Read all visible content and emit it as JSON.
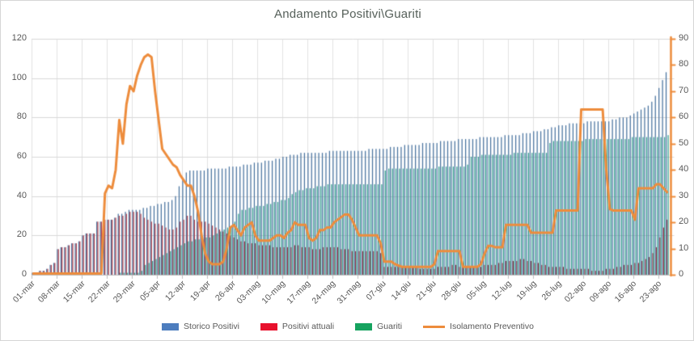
{
  "title": "Andamento Positivi\\Guariti",
  "colors": {
    "storico_bar": "#49739f",
    "attuali_bar": "#a73d4b",
    "guariti_bar": "#2f9b8c",
    "storico_legend": "#4d7dbe",
    "attuali_legend": "#e8112d",
    "guariti_legend": "#16a35f",
    "isolamento_line": "#ed8c3c",
    "gridline": "#d9d9d9",
    "vertical_gridline": "#e2e2e2",
    "axis_line": "#bfbfbf",
    "axis_text": "#595959",
    "title_text": "#56605a"
  },
  "chart_data": {
    "type": "bar",
    "title": "Andamento Positivi\\Guariti",
    "xlabel": "",
    "ylabel": "",
    "grid": true,
    "legend_position": "bottom",
    "n_days": 178,
    "tick_every_days": 7,
    "x_tick_labels": [
      "01-mar",
      "08-mar",
      "15-mar",
      "22-mar",
      "29-mar",
      "05-apr",
      "12-apr",
      "19-apr",
      "26-apr",
      "03-mag",
      "10-mag",
      "17-mag",
      "24-mag",
      "31-mag",
      "07-giu",
      "14-giu",
      "21-giu",
      "28-giu",
      "05-lug",
      "12-lug",
      "19-lug",
      "26-lug",
      "02-ago",
      "09-ago",
      "16-ago",
      "23-ago"
    ],
    "left_axis": {
      "min": 0,
      "max": 120,
      "step": 20,
      "ticks": [
        0,
        20,
        40,
        60,
        80,
        100,
        120
      ]
    },
    "right_axis": {
      "min": 0,
      "max": 90,
      "step": 10,
      "ticks": [
        0,
        10,
        20,
        30,
        40,
        50,
        60,
        70,
        80,
        90
      ]
    },
    "series": [
      {
        "name": "Storico Positivi",
        "type": "bar",
        "axis": "left",
        "values": [
          1,
          1,
          2,
          2,
          3,
          5,
          6,
          13,
          14,
          14,
          15,
          16,
          16,
          17,
          20,
          21,
          21,
          21,
          27,
          27,
          28,
          28,
          28,
          29,
          31,
          31,
          32,
          33,
          33,
          33,
          33,
          34,
          34,
          35,
          35,
          36,
          36,
          37,
          37,
          38,
          40,
          45,
          48,
          52,
          53,
          53,
          53,
          53,
          53,
          54,
          54,
          54,
          54,
          54,
          54,
          55,
          55,
          55,
          55,
          56,
          56,
          56,
          57,
          57,
          57,
          58,
          58,
          58,
          59,
          59,
          60,
          60,
          61,
          61,
          61,
          62,
          62,
          62,
          62,
          62,
          62,
          62,
          62,
          63,
          63,
          63,
          63,
          63,
          63,
          63,
          63,
          63,
          63,
          63,
          64,
          64,
          64,
          64,
          64,
          64,
          65,
          65,
          65,
          65,
          66,
          66,
          66,
          66,
          66,
          67,
          67,
          67,
          67,
          67,
          68,
          68,
          68,
          68,
          68,
          69,
          69,
          69,
          69,
          69,
          69,
          70,
          70,
          70,
          70,
          70,
          70,
          70,
          71,
          71,
          71,
          71,
          71,
          72,
          72,
          72,
          73,
          73,
          73,
          74,
          74,
          75,
          75,
          76,
          76,
          76,
          77,
          77,
          77,
          77,
          77,
          78,
          78,
          78,
          78,
          78,
          78,
          78,
          79,
          79,
          80,
          80,
          80,
          81,
          82,
          83,
          84,
          85,
          86,
          88,
          91,
          95,
          99,
          103
        ]
      },
      {
        "name": "Positivi attuali",
        "type": "bar",
        "axis": "left",
        "values": [
          1,
          1,
          2,
          2,
          3,
          5,
          6,
          13,
          14,
          14,
          15,
          16,
          16,
          17,
          20,
          21,
          21,
          21,
          27,
          27,
          28,
          28,
          28,
          29,
          30,
          30,
          31,
          32,
          32,
          32,
          31,
          29,
          28,
          27,
          26,
          26,
          25,
          24,
          23,
          23,
          24,
          27,
          28,
          30,
          30,
          28,
          27,
          27,
          27,
          26,
          25,
          24,
          23,
          22,
          21,
          20,
          19,
          18,
          17,
          17,
          16,
          16,
          16,
          15,
          15,
          15,
          15,
          14,
          14,
          14,
          14,
          14,
          14,
          15,
          15,
          14,
          14,
          14,
          13,
          13,
          13,
          14,
          14,
          14,
          14,
          14,
          13,
          13,
          13,
          12,
          12,
          12,
          12,
          12,
          12,
          12,
          12,
          11,
          4,
          4,
          4,
          4,
          4,
          4,
          4,
          4,
          4,
          4,
          3,
          3,
          3,
          3,
          3,
          4,
          4,
          4,
          4,
          5,
          5,
          4,
          4,
          4,
          4,
          4,
          4,
          4,
          5,
          5,
          5,
          5,
          6,
          6,
          7,
          7,
          7,
          7,
          8,
          8,
          7,
          7,
          6,
          6,
          5,
          5,
          4,
          4,
          4,
          4,
          4,
          3,
          3,
          3,
          3,
          3,
          3,
          3,
          2,
          2,
          2,
          2,
          3,
          3,
          3,
          4,
          4,
          5,
          5,
          5,
          6,
          6,
          7,
          8,
          9,
          11,
          14,
          19,
          24,
          28
        ]
      },
      {
        "name": "Guariti",
        "type": "bar",
        "axis": "left",
        "values": [
          0,
          0,
          0,
          0,
          0,
          0,
          0,
          0,
          0,
          0,
          0,
          0,
          0,
          0,
          0,
          0,
          0,
          0,
          0,
          0,
          0,
          0,
          0,
          0,
          1,
          1,
          1,
          1,
          1,
          1,
          2,
          5,
          6,
          7,
          8,
          9,
          10,
          11,
          12,
          13,
          14,
          15,
          16,
          17,
          17,
          18,
          18,
          18,
          19,
          19,
          20,
          21,
          22,
          23,
          24,
          25,
          27,
          31,
          33,
          33,
          34,
          34,
          35,
          35,
          35,
          36,
          36,
          37,
          37,
          38,
          38,
          39,
          41,
          42,
          43,
          43,
          44,
          44,
          44,
          45,
          45,
          45,
          46,
          46,
          46,
          46,
          46,
          46,
          46,
          46,
          46,
          46,
          46,
          46,
          46,
          46,
          46,
          46,
          53,
          54,
          54,
          54,
          54,
          54,
          54,
          54,
          54,
          54,
          54,
          54,
          54,
          54,
          54,
          55,
          55,
          55,
          55,
          55,
          55,
          55,
          55,
          56,
          60,
          60,
          60,
          61,
          61,
          61,
          61,
          61,
          61,
          61,
          61,
          61,
          62,
          62,
          62,
          62,
          62,
          62,
          62,
          62,
          62,
          62,
          67,
          68,
          68,
          68,
          68,
          68,
          68,
          68,
          68,
          68,
          69,
          69,
          69,
          69,
          69,
          69,
          69,
          69,
          69,
          69,
          69,
          69,
          69,
          70,
          70,
          70,
          70,
          70,
          70,
          70,
          70,
          70,
          70,
          71
        ]
      },
      {
        "name": "Isolamento Preventivo",
        "type": "line",
        "axis": "right",
        "values": [
          0,
          0,
          0,
          0,
          0,
          0,
          0,
          0,
          0,
          0,
          0,
          0,
          0,
          0,
          0,
          0,
          0,
          0,
          0,
          0,
          31,
          34,
          33,
          40,
          59,
          50,
          65,
          72,
          70,
          76,
          80,
          83,
          84,
          83,
          70,
          59,
          48,
          46,
          44,
          42,
          41,
          38,
          36,
          34,
          34,
          30,
          24,
          15,
          8,
          5,
          4,
          4,
          4,
          5,
          10,
          18,
          19,
          17,
          15,
          18,
          19,
          20,
          15,
          13,
          13,
          13,
          13,
          14,
          15,
          15,
          14,
          16,
          17,
          20,
          19,
          19,
          19,
          14,
          13,
          14,
          17,
          17,
          18,
          18,
          20,
          21,
          22,
          23,
          23,
          21,
          18,
          15,
          15,
          15,
          15,
          15,
          15,
          12,
          5,
          5,
          5,
          4,
          3.5,
          3,
          3,
          3,
          3,
          3,
          3,
          3,
          3,
          3,
          4,
          9,
          9,
          9,
          9,
          9,
          9,
          9,
          3,
          3,
          3,
          3,
          3,
          4,
          8,
          11,
          11,
          10.5,
          10.5,
          10.5,
          19,
          19,
          19,
          19,
          19,
          19,
          19,
          16,
          16,
          16,
          16,
          16,
          16,
          16,
          24.5,
          24.5,
          24.5,
          24.5,
          24.5,
          24.5,
          24.5,
          63,
          63,
          63,
          63,
          63,
          63,
          63,
          40,
          25,
          24.5,
          24.5,
          24.5,
          24.5,
          24.5,
          24.5,
          21,
          33,
          33,
          33,
          33,
          33,
          34.5,
          34.5,
          33,
          31.5
        ]
      }
    ]
  },
  "legend": {
    "items": [
      {
        "label": "Storico Positivi",
        "swatch": "bar-swatch-blue"
      },
      {
        "label": "Positivi attuali",
        "swatch": "bar-swatch-red"
      },
      {
        "label": "Guariti",
        "swatch": "bar-swatch-green"
      },
      {
        "label": "Isolamento Preventivo",
        "swatch": "line-swatch-orange"
      }
    ]
  }
}
